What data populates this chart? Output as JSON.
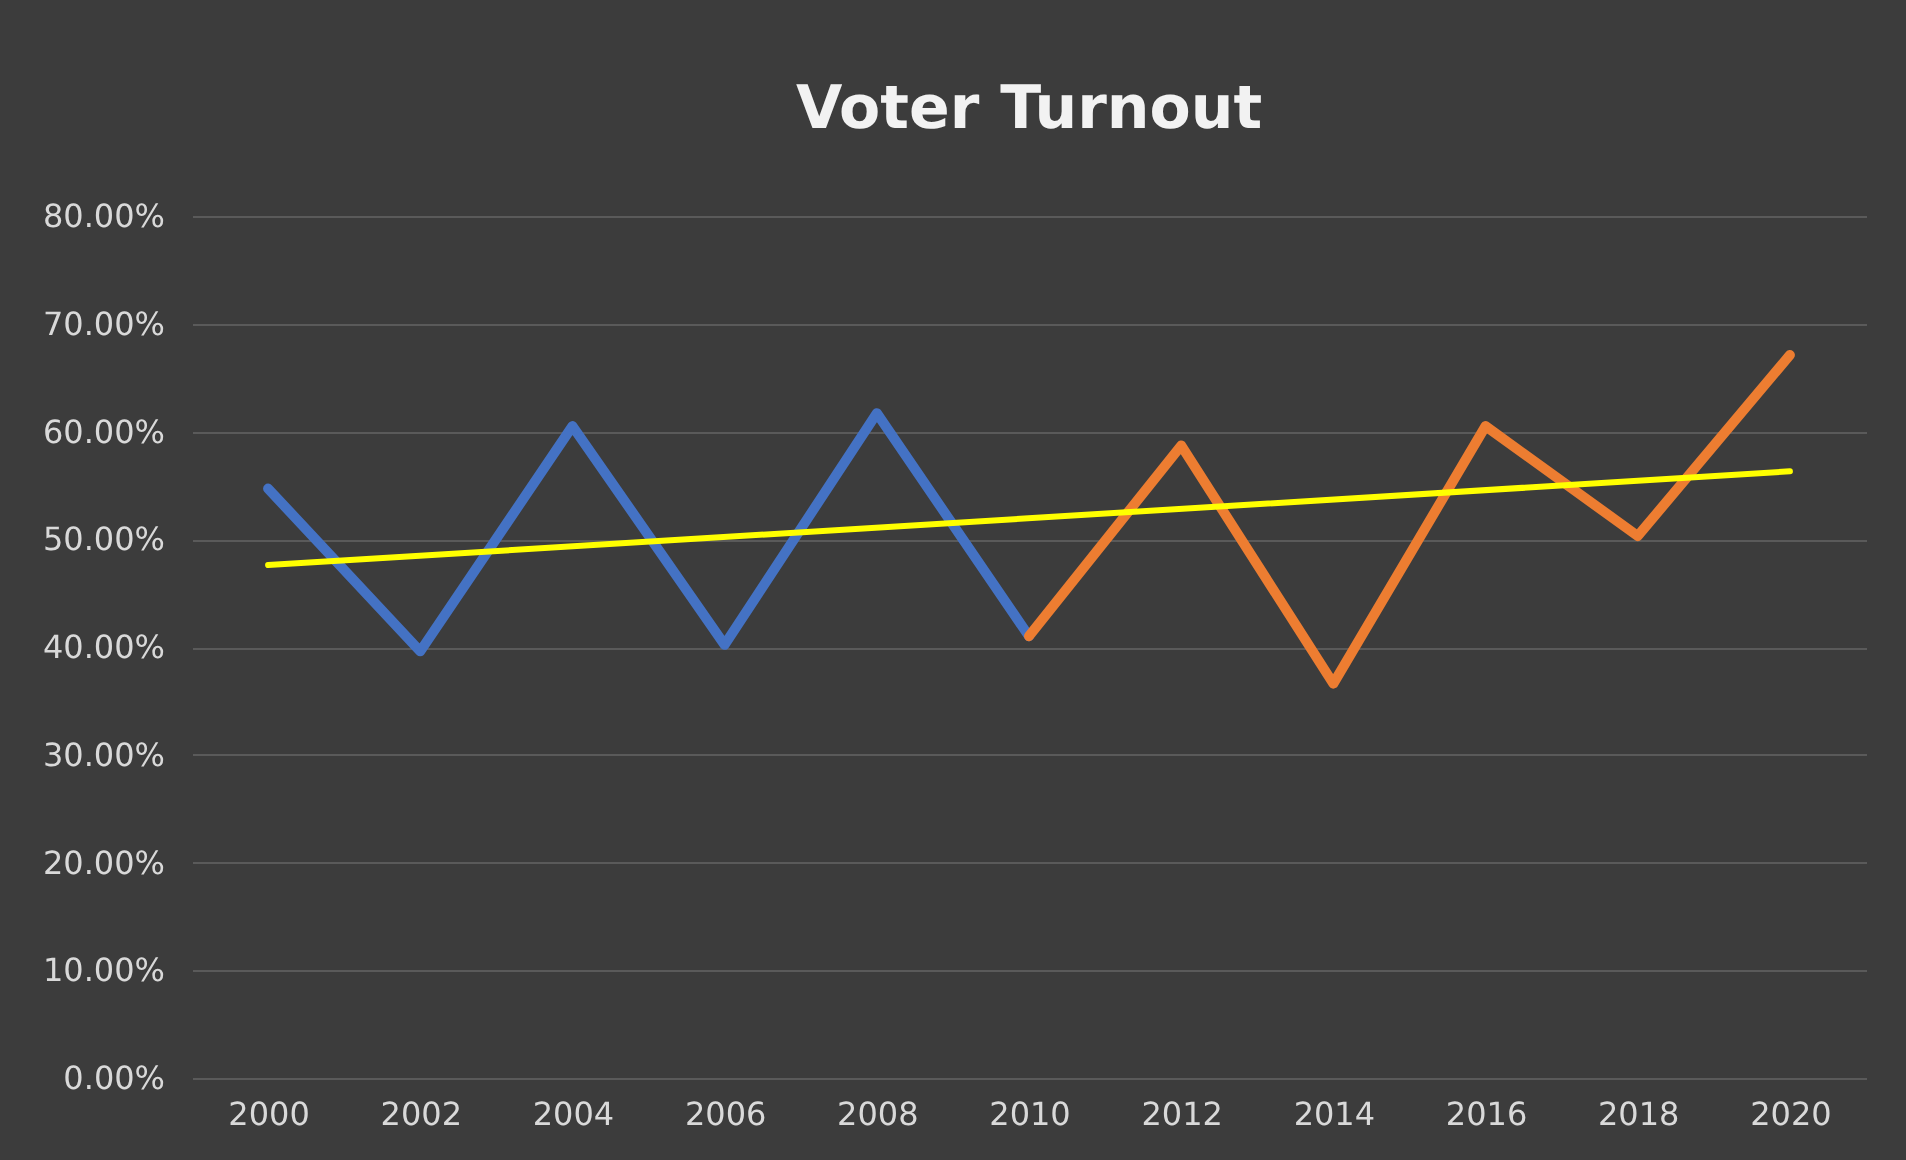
{
  "chart_data": {
    "type": "line",
    "title": "Voter Turnout",
    "series": [
      {
        "color": "#4472c4",
        "x": [
          2000,
          2002,
          2004,
          2006,
          2008,
          2010
        ],
        "values": [
          54.7,
          39.6,
          60.5,
          40.2,
          61.7,
          41.0
        ]
      },
      {
        "color": "#ed7d31",
        "x": [
          2010,
          2012,
          2014,
          2016,
          2018,
          2020
        ],
        "values": [
          41.0,
          58.7,
          36.6,
          60.5,
          50.3,
          67.1
        ]
      },
      {
        "color": "#ffff00",
        "x": [
          2000,
          2020
        ],
        "values": [
          47.6,
          56.3
        ]
      }
    ],
    "xlim": [
      1999,
      2021
    ],
    "xticks": [
      2000,
      2002,
      2004,
      2006,
      2008,
      2010,
      2012,
      2014,
      2016,
      2018,
      2020
    ],
    "ylim": [
      0,
      80
    ],
    "yticks": [
      {
        "value": 0,
        "label": "0.00%"
      },
      {
        "value": 10,
        "label": "10.00%"
      },
      {
        "value": 20,
        "label": "20.00%"
      },
      {
        "value": 30,
        "label": "30.00%"
      },
      {
        "value": 40,
        "label": "40.00%"
      },
      {
        "value": 50,
        "label": "50.00%"
      },
      {
        "value": 60,
        "label": "60.00%"
      },
      {
        "value": 70,
        "label": "70.00%"
      },
      {
        "value": 80,
        "label": "80.00%"
      }
    ],
    "grid": "y",
    "marker": "none",
    "line_style": "solid"
  }
}
